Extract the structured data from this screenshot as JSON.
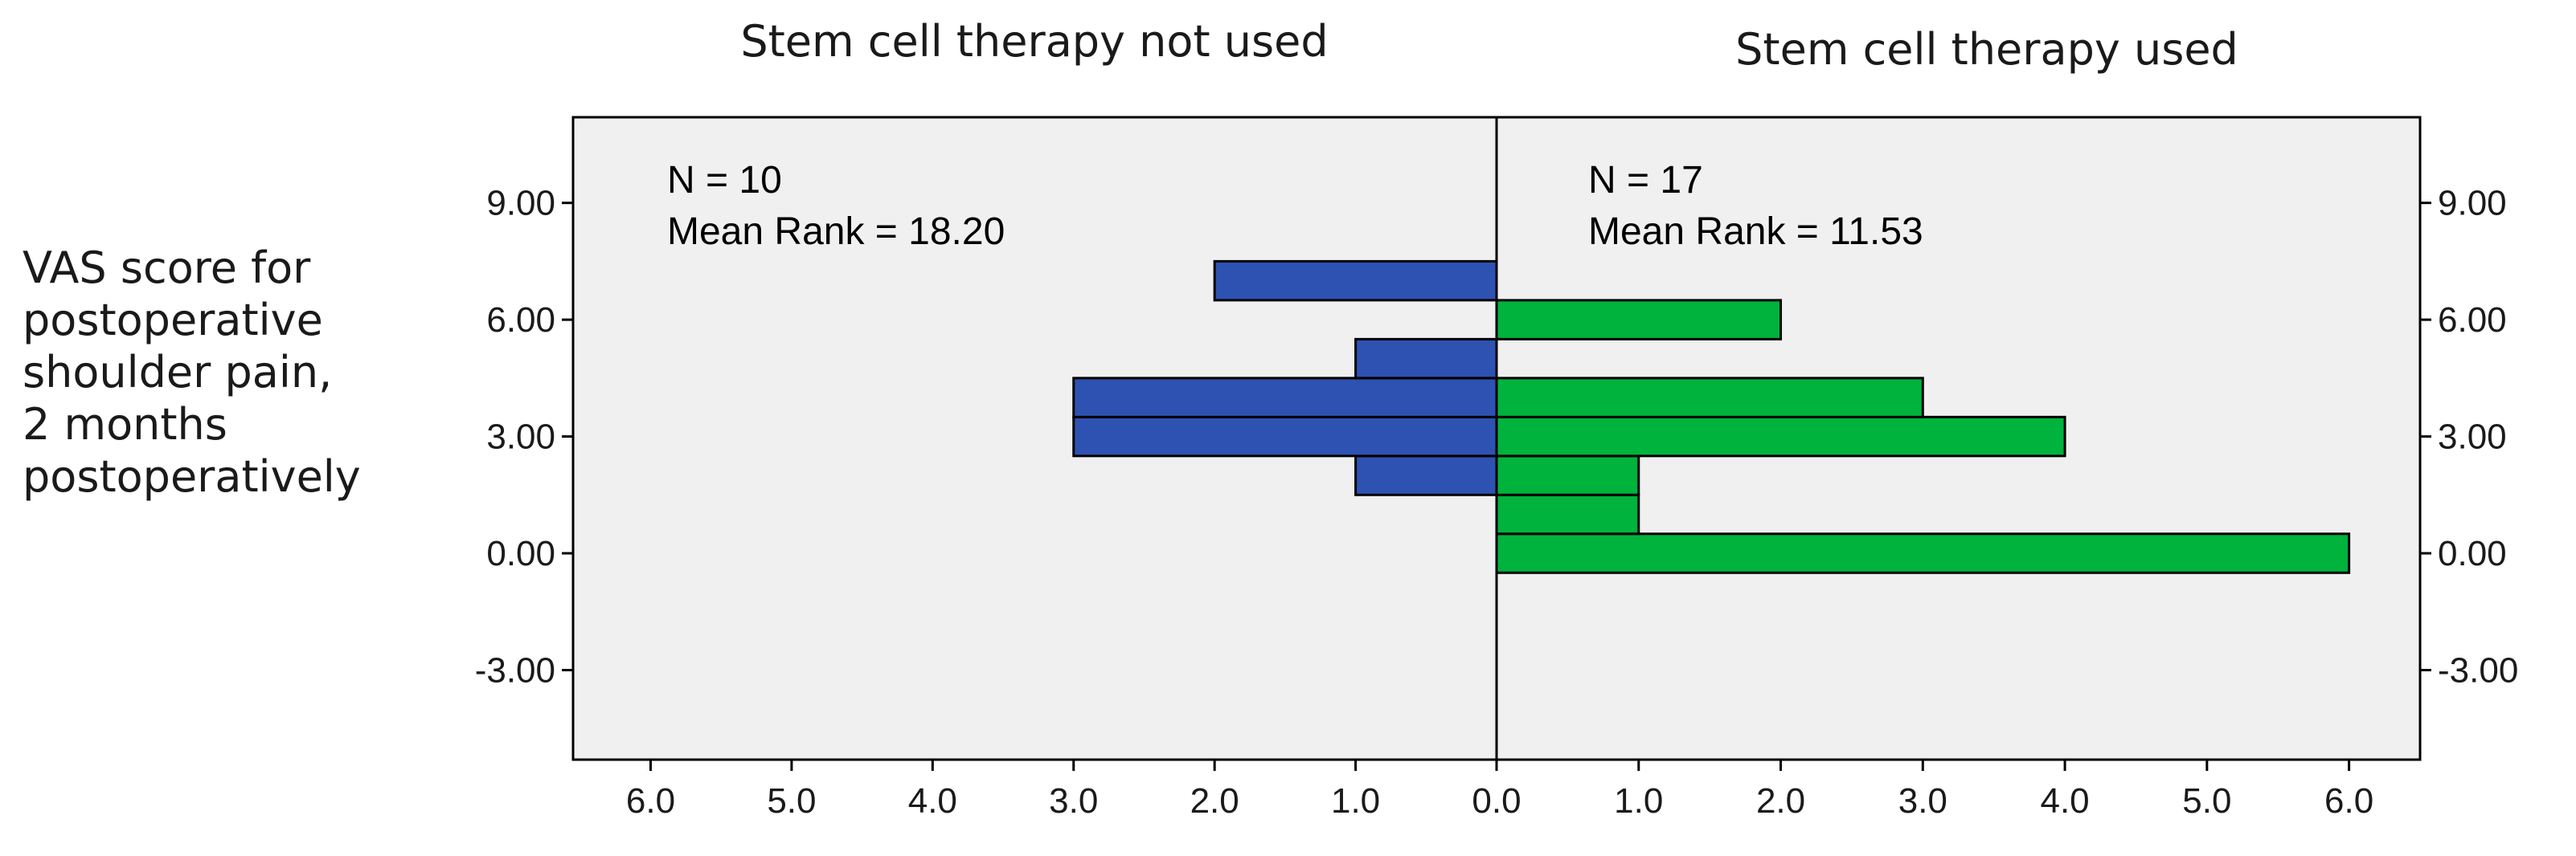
{
  "chart_data": {
    "type": "bar",
    "orientation": "horizontal",
    "layout": "back-to-back histogram",
    "y_axis": {
      "label_lines": [
        "VAS score for",
        "postoperative",
        "shoulder pain,",
        "2 months",
        "postoperatively"
      ],
      "ticks": [
        "9.00",
        "6.00",
        "3.00",
        "0.00",
        "-3.00"
      ],
      "tick_values": [
        9,
        6,
        3,
        0,
        -3
      ],
      "range": [
        -5.3,
        11.2
      ]
    },
    "x_axis": {
      "ticks_left": [
        "6.0",
        "5.0",
        "4.0",
        "3.0",
        "2.0",
        "1.0"
      ],
      "ticks_right": [
        "0.0",
        "1.0",
        "2.0",
        "3.0",
        "4.0",
        "5.0",
        "6.0"
      ],
      "max": 6.5,
      "min": 6.55
    },
    "bin_width": 1,
    "groups": [
      {
        "title": "Stem cell therapy not used",
        "side": "left",
        "color": "#2e52b2",
        "n_label": "N = 10",
        "mean_rank_label": "Mean Rank = 18.20",
        "bins": [
          {
            "y": 2,
            "count": 1
          },
          {
            "y": 3,
            "count": 3
          },
          {
            "y": 4,
            "count": 3
          },
          {
            "y": 5,
            "count": 1
          },
          {
            "y": 7,
            "count": 2
          }
        ]
      },
      {
        "title": "Stem cell therapy used",
        "side": "right",
        "color": "#00b33c",
        "n_label": "N = 17",
        "mean_rank_label": "Mean Rank = 11.53",
        "bins": [
          {
            "y": 0,
            "count": 6
          },
          {
            "y": 1,
            "count": 1
          },
          {
            "y": 2,
            "count": 1
          },
          {
            "y": 3,
            "count": 4
          },
          {
            "y": 4,
            "count": 3
          },
          {
            "y": 6,
            "count": 2
          }
        ]
      }
    ],
    "plot_background": "#f0f0f0"
  }
}
